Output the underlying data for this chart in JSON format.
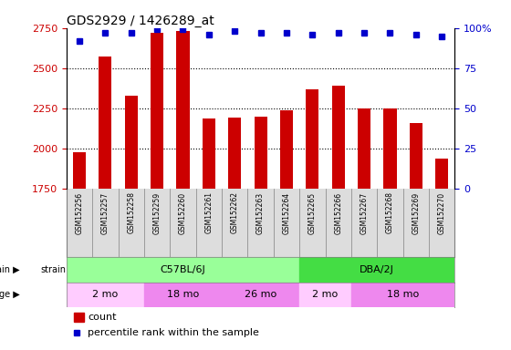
{
  "title": "GDS2929 / 1426289_at",
  "samples": [
    "GSM152256",
    "GSM152257",
    "GSM152258",
    "GSM152259",
    "GSM152260",
    "GSM152261",
    "GSM152262",
    "GSM152263",
    "GSM152264",
    "GSM152265",
    "GSM152266",
    "GSM152267",
    "GSM152268",
    "GSM152269",
    "GSM152270"
  ],
  "counts": [
    1975,
    2570,
    2330,
    2720,
    2730,
    2185,
    2190,
    2195,
    2235,
    2365,
    2390,
    2250,
    2250,
    2155,
    1935
  ],
  "percentile_ranks": [
    92,
    97,
    97,
    99,
    99,
    96,
    98,
    97,
    97,
    96,
    97,
    97,
    97,
    96,
    95
  ],
  "ylim_left": [
    1750,
    2750
  ],
  "ylim_right": [
    0,
    100
  ],
  "yticks_left": [
    1750,
    2000,
    2250,
    2500,
    2750
  ],
  "yticks_right": [
    0,
    25,
    50,
    75,
    100
  ],
  "bar_color": "#cc0000",
  "dot_color": "#0000cc",
  "strain_groups": [
    {
      "label": "C57BL/6J",
      "start": 0,
      "end": 8,
      "color": "#99ff99"
    },
    {
      "label": "DBA/2J",
      "start": 9,
      "end": 14,
      "color": "#33cc33"
    }
  ],
  "age_groups": [
    {
      "label": "2 mo",
      "start": 0,
      "end": 2,
      "color": "#ffaaff"
    },
    {
      "label": "18 mo",
      "start": 3,
      "end": 5,
      "color": "#ee88ee"
    },
    {
      "label": "26 mo",
      "start": 6,
      "end": 8,
      "color": "#ee88ee"
    },
    {
      "label": "2 mo",
      "start": 9,
      "end": 10,
      "color": "#ffaaff"
    },
    {
      "label": "18 mo",
      "start": 11,
      "end": 14,
      "color": "#ee88ee"
    }
  ],
  "strain_row_label": "strain",
  "age_row_label": "age",
  "legend_count_label": "count",
  "legend_percentile_label": "percentile rank within the sample",
  "tick_label_color": "#cc0000",
  "right_axis_color": "#0000cc",
  "background_color": "#ffffff",
  "grid_color": "#000000",
  "xlabel_color": "#666666"
}
